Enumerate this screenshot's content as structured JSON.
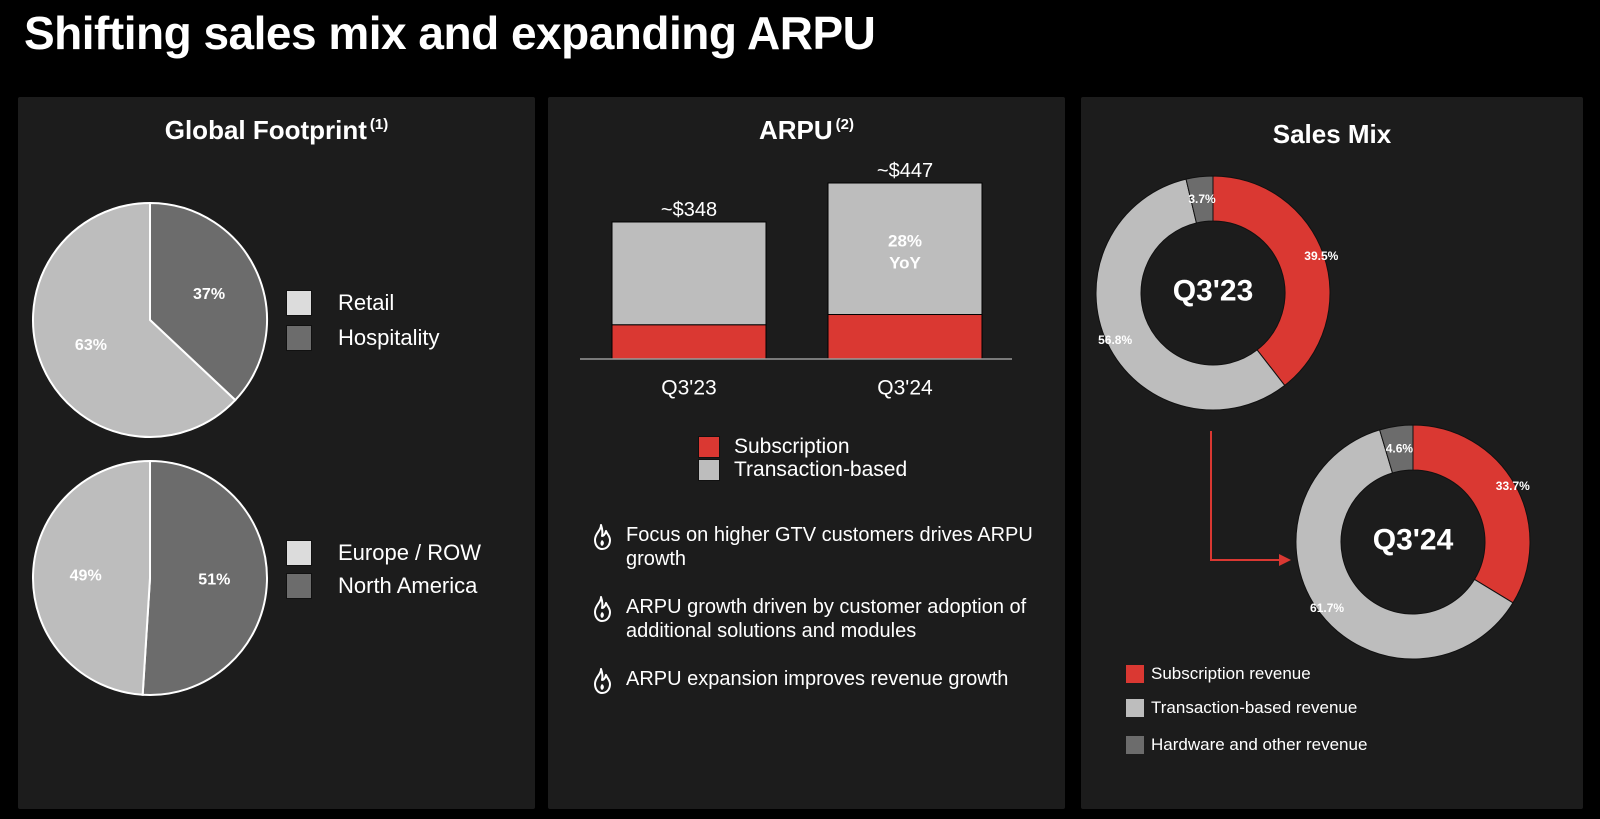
{
  "page": {
    "title": "Shifting sales mix and expanding ARPU"
  },
  "colors": {
    "red": "#da3832",
    "light_gray": "#bdbdbd",
    "mid_gray": "#6c6c6c",
    "panel_bg": "#1c1c1c",
    "legend_light": "#dcdcdc"
  },
  "footprint": {
    "title": "Global Footprint",
    "footnote": "(1)",
    "legend_top": [
      "Retail",
      "Hospitality"
    ],
    "legend_bottom": [
      "Europe / ROW",
      "North America"
    ]
  },
  "arpu": {
    "title": "ARPU",
    "footnote": "(2)",
    "legend": [
      "Subscription",
      "Transaction-based"
    ],
    "bullets": [
      "Focus on higher GTV customers drives ARPU growth",
      "ARPU growth driven by customer adoption of additional solutions and modules",
      "ARPU expansion improves revenue growth"
    ]
  },
  "sales_mix": {
    "title": "Sales Mix",
    "legend": [
      "Subscription revenue",
      "Transaction-based revenue",
      "Hardware and other revenue"
    ]
  },
  "chart_data": [
    {
      "type": "pie",
      "id": "footprint-pie-1",
      "labels": [
        "Retail",
        "Hospitality"
      ],
      "values": [
        63,
        37
      ],
      "value_labels": [
        "63%",
        "37%"
      ]
    },
    {
      "type": "pie",
      "id": "footprint-pie-2",
      "labels": [
        "Europe / ROW",
        "North America"
      ],
      "values": [
        49,
        51
      ],
      "value_labels": [
        "49%",
        "51%"
      ]
    },
    {
      "type": "bar",
      "id": "arpu-bars",
      "stacked": true,
      "categories": [
        "Q3'23",
        "Q3'24"
      ],
      "series": [
        {
          "name": "Subscription",
          "values": [
            87,
            113
          ]
        },
        {
          "name": "Transaction-based",
          "values": [
            261,
            334
          ]
        }
      ],
      "totals": [
        "~$348",
        "~$447"
      ],
      "annotation": {
        "line1": "28%",
        "line2": "YoY"
      },
      "ylim": [
        0,
        447
      ]
    },
    {
      "type": "pie",
      "id": "sales-mix-q323",
      "donut": true,
      "center_label": "Q3'23",
      "labels": [
        "Subscription revenue",
        "Transaction-based revenue",
        "Hardware and other revenue"
      ],
      "values": [
        39.5,
        56.8,
        3.7
      ],
      "value_labels": [
        "39.5%",
        "56.8%",
        "3.7%"
      ]
    },
    {
      "type": "pie",
      "id": "sales-mix-q324",
      "donut": true,
      "center_label": "Q3'24",
      "labels": [
        "Subscription revenue",
        "Transaction-based revenue",
        "Hardware and other revenue"
      ],
      "values": [
        33.7,
        61.7,
        4.6
      ],
      "value_labels": [
        "33.7%",
        "61.7%",
        "4.6%"
      ]
    }
  ]
}
